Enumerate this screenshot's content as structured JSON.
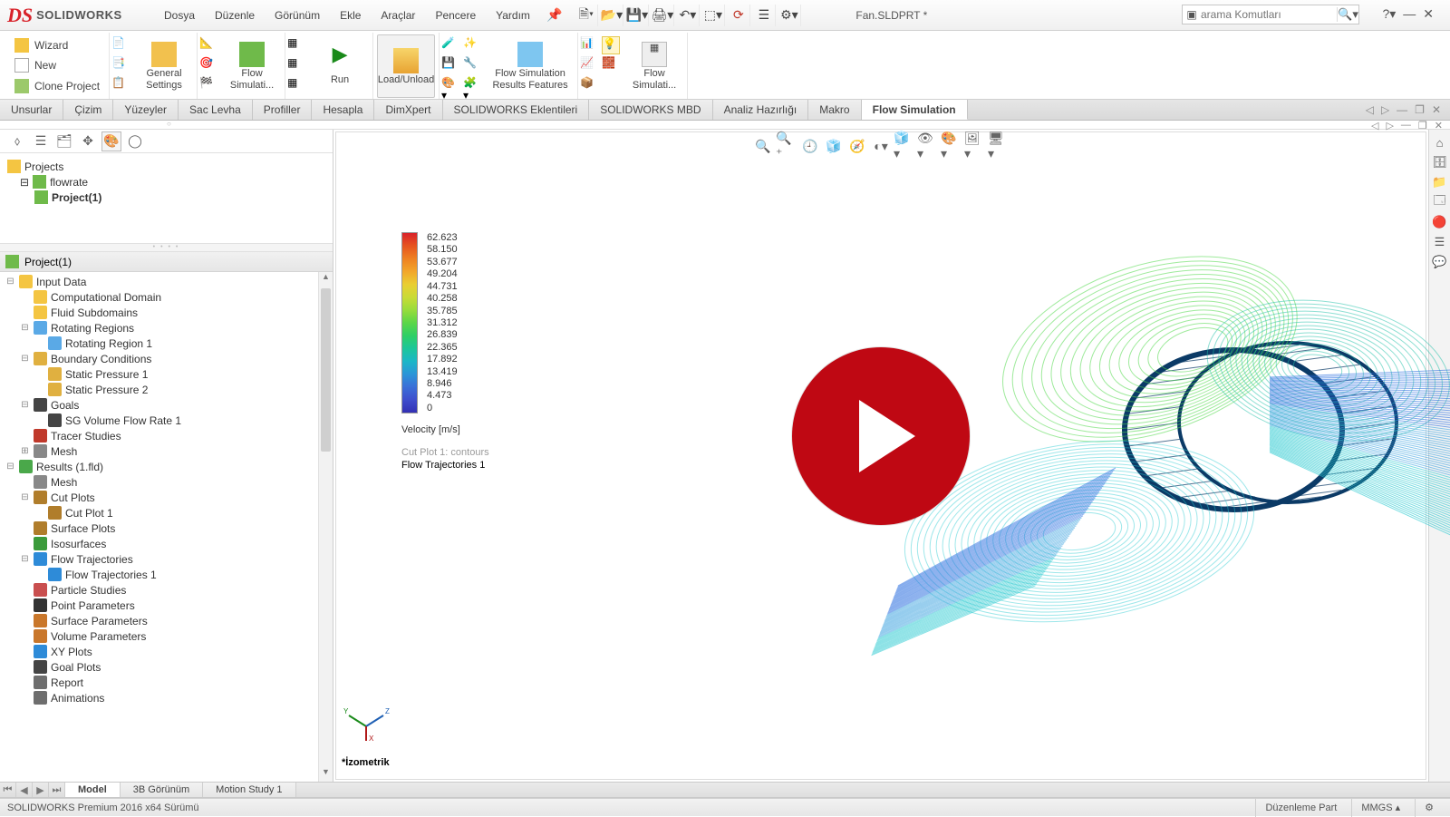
{
  "app": {
    "logo_prefix": "DS",
    "logo_text": "SOLIDWORKS",
    "document_title": "Fan.SLDPRT *",
    "search_placeholder": "arama Komutları"
  },
  "menu": [
    "Dosya",
    "Düzenle",
    "Görünüm",
    "Ekle",
    "Araçlar",
    "Pencere",
    "Yardım"
  ],
  "ribbon": {
    "wizard": "Wizard",
    "new": "New",
    "clone": "Clone Project",
    "general": "General Settings",
    "flowsim": "Flow Simulati...",
    "run": "Run",
    "loadunload": "Load/Unload",
    "results_features": "Flow Simulation Results Features",
    "flowsim2": "Flow Simulati..."
  },
  "feature_tabs": [
    "Unsurlar",
    "Çizim",
    "Yüzeyler",
    "Sac Levha",
    "Profiller",
    "Hesapla",
    "DimXpert",
    "SOLIDWORKS Eklentileri",
    "SOLIDWORKS MBD",
    "Analiz Hazırlığı",
    "Makro",
    "Flow Simulation"
  ],
  "active_feature_tab": 11,
  "project_tree_top": {
    "root": "Projects",
    "study": "flowrate",
    "project": "Project(1)"
  },
  "design_tree_header": "Project(1)",
  "design_tree": [
    {
      "ind": 0,
      "exp": "⊟",
      "icon": "#f4c542",
      "label": "Input Data"
    },
    {
      "ind": 1,
      "exp": "",
      "icon": "#f4c542",
      "label": "Computational Domain"
    },
    {
      "ind": 1,
      "exp": "",
      "icon": "#f4c542",
      "label": "Fluid Subdomains"
    },
    {
      "ind": 1,
      "exp": "⊟",
      "icon": "#5aa9e6",
      "label": "Rotating Regions"
    },
    {
      "ind": 2,
      "exp": "",
      "icon": "#5aa9e6",
      "label": "Rotating Region 1"
    },
    {
      "ind": 1,
      "exp": "⊟",
      "icon": "#e0b040",
      "label": "Boundary Conditions"
    },
    {
      "ind": 2,
      "exp": "",
      "icon": "#e0b040",
      "label": "Static Pressure 1"
    },
    {
      "ind": 2,
      "exp": "",
      "icon": "#e0b040",
      "label": "Static Pressure 2"
    },
    {
      "ind": 1,
      "exp": "⊟",
      "icon": "#444444",
      "label": "Goals"
    },
    {
      "ind": 2,
      "exp": "",
      "icon": "#444444",
      "label": "SG Volume Flow Rate 1"
    },
    {
      "ind": 1,
      "exp": "",
      "icon": "#c0392b",
      "label": "Tracer Studies"
    },
    {
      "ind": 1,
      "exp": "⊞",
      "icon": "#888888",
      "label": "Mesh"
    },
    {
      "ind": 0,
      "exp": "⊟",
      "icon": "#4aa84a",
      "label": "Results (1.fld)"
    },
    {
      "ind": 1,
      "exp": "",
      "icon": "#888888",
      "label": "Mesh"
    },
    {
      "ind": 1,
      "exp": "⊟",
      "icon": "#b07d2b",
      "label": "Cut Plots"
    },
    {
      "ind": 2,
      "exp": "",
      "icon": "#b07d2b",
      "label": "Cut Plot 1"
    },
    {
      "ind": 1,
      "exp": "",
      "icon": "#b07d2b",
      "label": "Surface Plots"
    },
    {
      "ind": 1,
      "exp": "",
      "icon": "#3b9b3b",
      "label": "Isosurfaces"
    },
    {
      "ind": 1,
      "exp": "⊟",
      "icon": "#2e8bd8",
      "label": "Flow Trajectories"
    },
    {
      "ind": 2,
      "exp": "",
      "icon": "#2e8bd8",
      "label": "Flow Trajectories 1"
    },
    {
      "ind": 1,
      "exp": "",
      "icon": "#c94f4f",
      "label": "Particle Studies"
    },
    {
      "ind": 1,
      "exp": "",
      "icon": "#333333",
      "label": "Point Parameters"
    },
    {
      "ind": 1,
      "exp": "",
      "icon": "#c9772b",
      "label": "Surface Parameters"
    },
    {
      "ind": 1,
      "exp": "",
      "icon": "#c9772b",
      "label": "Volume Parameters"
    },
    {
      "ind": 1,
      "exp": "",
      "icon": "#2e8bd8",
      "label": "XY Plots"
    },
    {
      "ind": 1,
      "exp": "",
      "icon": "#444444",
      "label": "Goal Plots"
    },
    {
      "ind": 1,
      "exp": "",
      "icon": "#6e6e6e",
      "label": "Report"
    },
    {
      "ind": 1,
      "exp": "",
      "icon": "#6e6e6e",
      "label": "Animations"
    }
  ],
  "legend": {
    "title": "Velocity [m/s]",
    "values": [
      "62.623",
      "58.150",
      "53.677",
      "49.204",
      "44.731",
      "40.258",
      "35.785",
      "31.312",
      "26.839",
      "22.365",
      "17.892",
      "13.419",
      "8.946",
      "4.473",
      "0"
    ],
    "colors": [
      "#d8222a",
      "#e6541f",
      "#ee8122",
      "#f2a62a",
      "#eace32",
      "#c9db36",
      "#98dc3c",
      "#5bd648",
      "#2ecf66",
      "#1cc69a",
      "#1bb7c7",
      "#2b95d8",
      "#3a6fd8",
      "#3e4ecd",
      "#3330b4"
    ],
    "cutplot_dim": "Cut Plot 1: contours",
    "flowtraj": "Flow Trajectories 1"
  },
  "triad_label": "*İzometrik",
  "bottom_tabs": [
    "Model",
    "3B Görünüm",
    "Motion Study 1"
  ],
  "active_bottom_tab": 0,
  "status": {
    "left": "SOLIDWORKS Premium 2016 x64 Sürümü",
    "mode": "Düzenleme Part",
    "units": "MMGS"
  },
  "flow_colors": {
    "green": "#51d84a",
    "cyan": "#28c9d0",
    "teal": "#1ebfa7",
    "lblue": "#3da3e0",
    "blue": "#2c6fe0",
    "dark": "#0b3a66"
  }
}
